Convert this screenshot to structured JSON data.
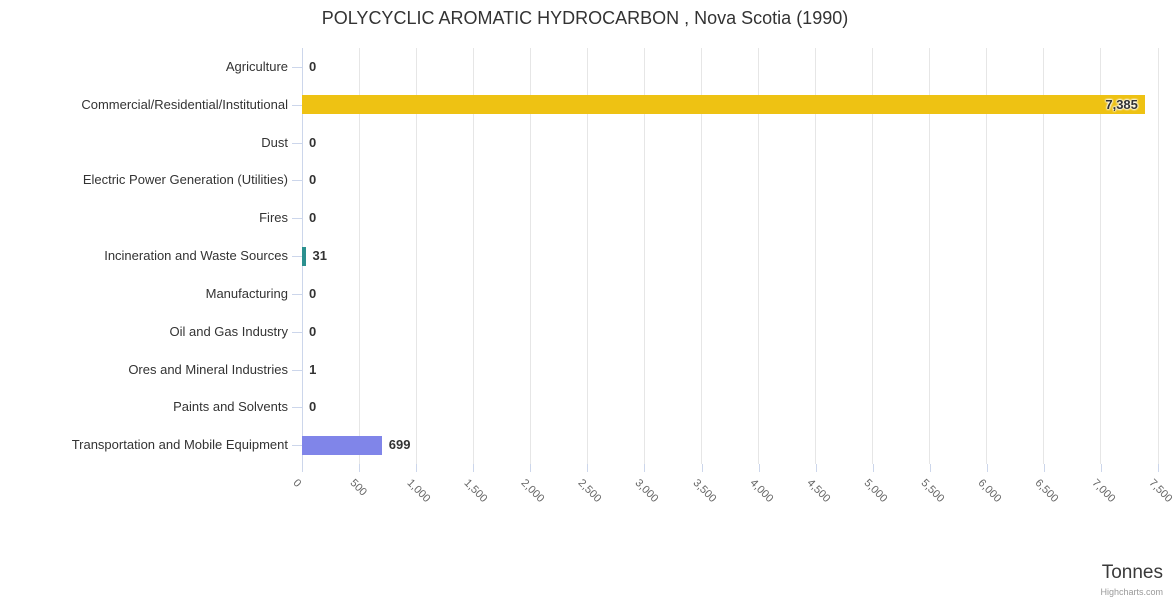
{
  "chart": {
    "title": "POLYCYCLIC AROMATIC HYDROCARBON , Nova Scotia (1990)",
    "xaxis_title": "Tonnes",
    "credits": "Highcharts.com"
  },
  "chart_data": {
    "type": "bar",
    "orientation": "horizontal",
    "title": "POLYCYCLIC AROMATIC HYDROCARBON , Nova Scotia (1990)",
    "categories": [
      "Agriculture",
      "Commercial/Residential/Institutional",
      "Dust",
      "Electric Power Generation (Utilities)",
      "Fires",
      "Incineration and Waste Sources",
      "Manufacturing",
      "Oil and Gas Industry",
      "Ores and Mineral Industries",
      "Paints and Solvents",
      "Transportation and Mobile Equipment"
    ],
    "values": [
      0,
      7385,
      0,
      0,
      0,
      31,
      0,
      0,
      1,
      0,
      699
    ],
    "value_labels": [
      "0",
      "7,385",
      "0",
      "0",
      "0",
      "31",
      "0",
      "0",
      "1",
      "0",
      "699"
    ],
    "point_colors": [
      null,
      "#EEC213",
      null,
      null,
      null,
      "#2B908F",
      null,
      null,
      null,
      null,
      "#8085E9"
    ],
    "xlabel": "Tonnes",
    "xlim": [
      0,
      7500
    ],
    "xticks": [
      0,
      500,
      1000,
      1500,
      2000,
      2500,
      3000,
      3500,
      4000,
      4500,
      5000,
      5500,
      6000,
      6500,
      7000,
      7500
    ],
    "xtick_labels": [
      "0",
      "500",
      "1,000",
      "1,500",
      "2,000",
      "2,500",
      "3,000",
      "3,500",
      "4,000",
      "4,500",
      "5,000",
      "5,500",
      "6,000",
      "6,500",
      "7,000",
      "7,500"
    ],
    "xtick_label_rotation_deg": 45,
    "grid": true,
    "legend": false
  },
  "colors": {
    "grid_line": "#E6E6E6",
    "axis_line": "#CCD6EB",
    "title_text": "#333333",
    "category_text": "#333333",
    "axis_label_text": "#666666",
    "data_label_text": "#333333",
    "credits_text": "#999999",
    "background": "#FFFFFF"
  }
}
